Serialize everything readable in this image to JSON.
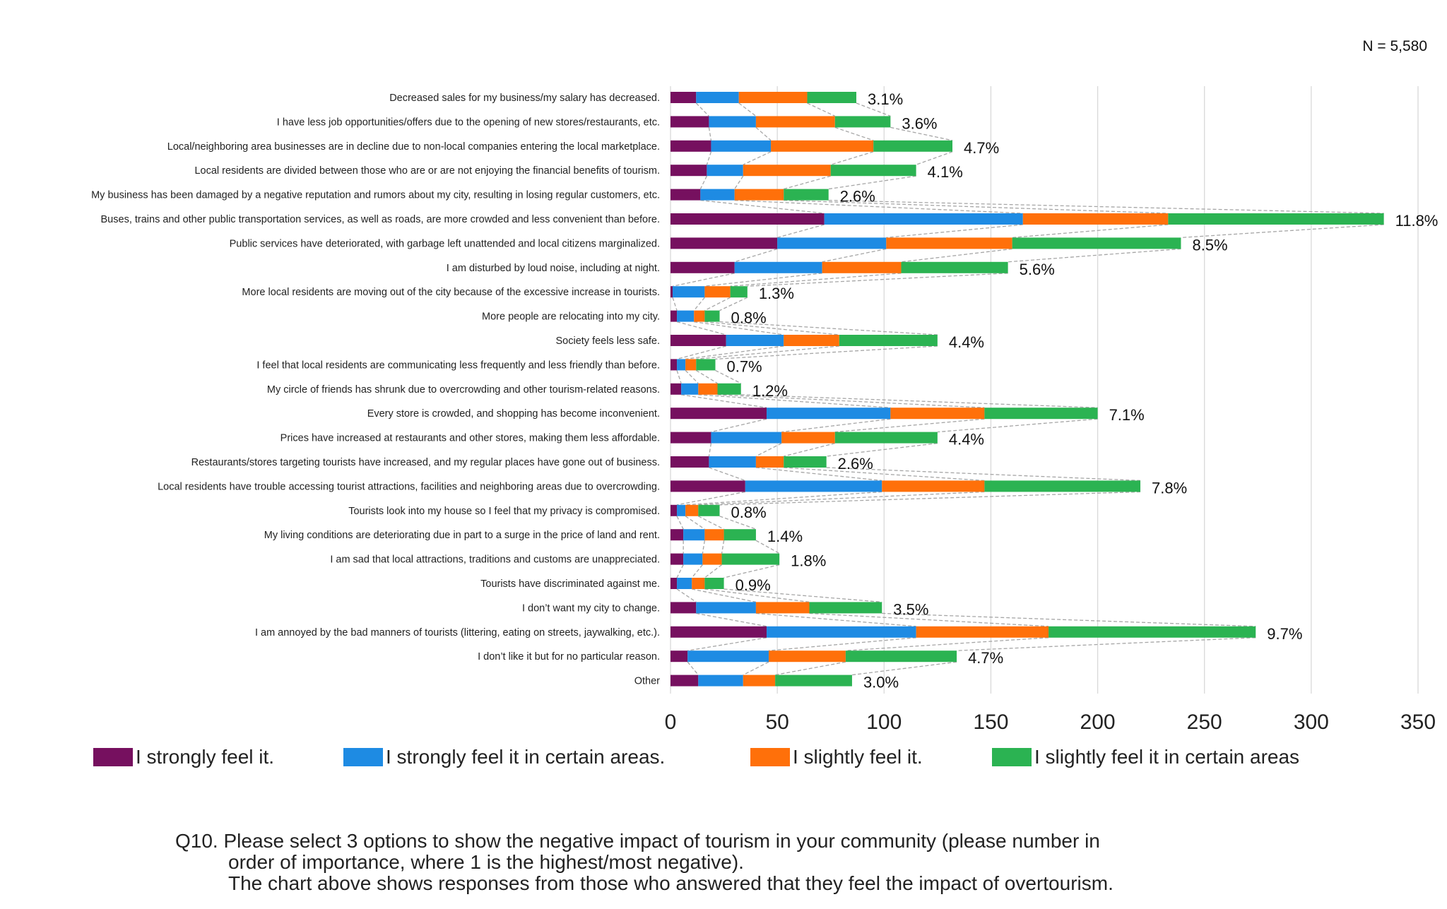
{
  "sample_size": "N = 5,580",
  "chart_data": {
    "type": "bar",
    "orientation": "horizontal",
    "stacked": true,
    "xlim": [
      0,
      350
    ],
    "xticks": [
      0,
      50,
      100,
      150,
      200,
      250,
      300,
      350
    ],
    "grid": true,
    "legend_position": "bottom",
    "categories": [
      "Decreased sales for my business/my salary has decreased.",
      "I have less job opportunities/offers due to the opening of new stores/restaurants, etc.",
      "Local/neighboring area businesses are in decline due to non-local companies entering the local marketplace.",
      "Local residents are divided between those who are or are not enjoying the financial benefits of tourism.",
      "My business has been damaged by a negative reputation and rumors about my city, resulting in losing regular customers, etc.",
      "Buses, trains and other public transportation services, as well as roads, are more crowded and less convenient than before.",
      "Public services have deteriorated, with garbage left unattended and local citizens marginalized.",
      "I am disturbed by loud noise, including at night.",
      "More local residents are moving out of the city because of the excessive increase in tourists.",
      "More people are relocating into my city.",
      "Society feels less safe.",
      "I feel that local residents are communicating less frequently and less friendly than before.",
      "My circle of friends has shrunk due to overcrowding and other tourism-related reasons.",
      "Every store is crowded, and shopping has become inconvenient.",
      "Prices have increased at restaurants and other stores, making them less affordable.",
      "Restaurants/stores targeting tourists have increased, and my regular places have gone out of business.",
      "Local residents have trouble accessing tourist attractions, facilities and neighboring areas due to overcrowding.",
      "Tourists look into my house so I feel that my privacy is compromised.",
      "My living conditions are deteriorating due in part to a surge in the price of land and rent.",
      "I am sad that local attractions, traditions and customs are unappreciated.",
      "Tourists have discriminated against me.",
      "I don’t want my city to change.",
      "I am annoyed by the bad manners of tourists (littering, eating on streets, jaywalking, etc.).",
      "I don’t like it but for no particular reason.",
      "Other"
    ],
    "series": [
      {
        "name": "I strongly feel it.",
        "color": "#76105F",
        "values": [
          12,
          18,
          19,
          17,
          14,
          72,
          50,
          30,
          1,
          3,
          26,
          3,
          5,
          45,
          19,
          18,
          35,
          3,
          6,
          6,
          3,
          12,
          45,
          8,
          13
        ]
      },
      {
        "name": "I strongly feel it in certain areas.",
        "color": "#1E8BE3",
        "values": [
          20,
          22,
          28,
          17,
          16,
          93,
          51,
          41,
          15,
          8,
          27,
          4,
          8,
          58,
          33,
          22,
          64,
          4,
          10,
          9,
          7,
          28,
          70,
          38,
          21
        ]
      },
      {
        "name": "I slightly feel it.",
        "color": "#FF700A",
        "values": [
          32,
          37,
          48,
          41,
          23,
          68,
          59,
          37,
          12,
          5,
          26,
          5,
          9,
          44,
          25,
          13,
          48,
          6,
          9,
          9,
          6,
          25,
          62,
          36,
          15
        ]
      },
      {
        "name": "I slightly feel it in certain areas",
        "color": "#2BB352",
        "values": [
          23,
          26,
          37,
          40,
          21,
          101,
          79,
          50,
          8,
          7,
          46,
          9,
          11,
          53,
          48,
          20,
          73,
          10,
          15,
          27,
          9,
          34,
          97,
          52,
          36
        ]
      }
    ],
    "data_labels": [
      "3.1%",
      "3.6%",
      "4.7%",
      "4.1%",
      "2.6%",
      "11.8%",
      "8.5%",
      "5.6%",
      "1.3%",
      "0.8%",
      "4.4%",
      "0.7%",
      "1.2%",
      "7.1%",
      "4.4%",
      "2.6%",
      "7.8%",
      "0.8%",
      "1.4%",
      "1.8%",
      "0.9%",
      "3.5%",
      "9.7%",
      "4.7%",
      "3.0%"
    ],
    "series_lines": true
  },
  "caption": {
    "line1": "Q10. Please select 3 options to show the negative impact of tourism in your community (please number in",
    "line2": "order of importance, where 1 is the highest/most negative).",
    "line3": "The chart above shows responses from those who answered that they feel the impact of overtourism."
  },
  "colors": {
    "gridline": "#D9D9D9",
    "series_line": "#A6A6A6"
  }
}
